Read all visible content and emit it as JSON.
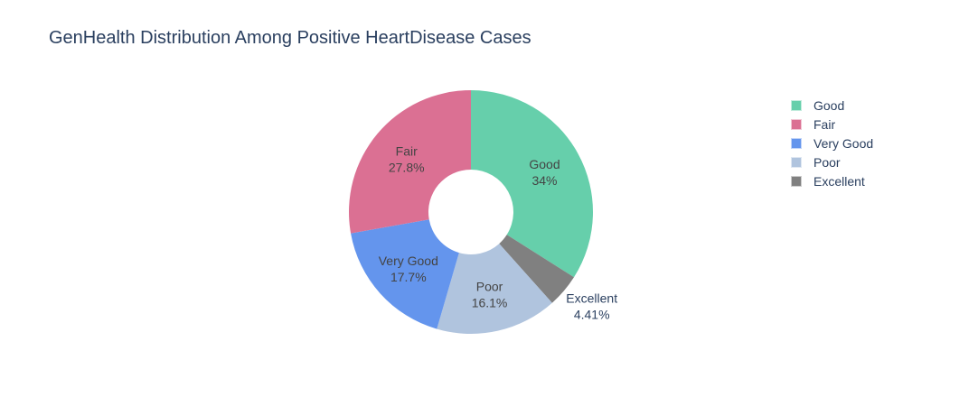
{
  "chart_data": {
    "type": "pie",
    "title": "GenHealth Distribution Among Positive HeartDisease Cases",
    "hole": true,
    "legend_position": "top-right",
    "slices": [
      {
        "label": "Good",
        "value": 34.0,
        "value_text": "34%",
        "color": "#66cfab",
        "label_position": "inside",
        "text_color": "#444444"
      },
      {
        "label": "Excellent",
        "value": 4.41,
        "value_text": "4.41%",
        "color": "#808080",
        "label_position": "outside",
        "text_color": "#2a3f5f"
      },
      {
        "label": "Poor",
        "value": 16.1,
        "value_text": "16.1%",
        "color": "#b0c4de",
        "label_position": "inside",
        "text_color": "#444444"
      },
      {
        "label": "Very Good",
        "value": 17.7,
        "value_text": "17.7%",
        "color": "#6495ed",
        "label_position": "inside",
        "text_color": "#444444"
      },
      {
        "label": "Fair",
        "value": 27.8,
        "value_text": "27.8%",
        "color": "#db7093",
        "label_position": "inside",
        "text_color": "#444444"
      }
    ],
    "legend": [
      {
        "label": "Good",
        "color": "#66cfab"
      },
      {
        "label": "Fair",
        "color": "#db7093"
      },
      {
        "label": "Very Good",
        "color": "#6495ed"
      },
      {
        "label": "Poor",
        "color": "#b0c4de"
      },
      {
        "label": "Excellent",
        "color": "#808080"
      }
    ]
  }
}
